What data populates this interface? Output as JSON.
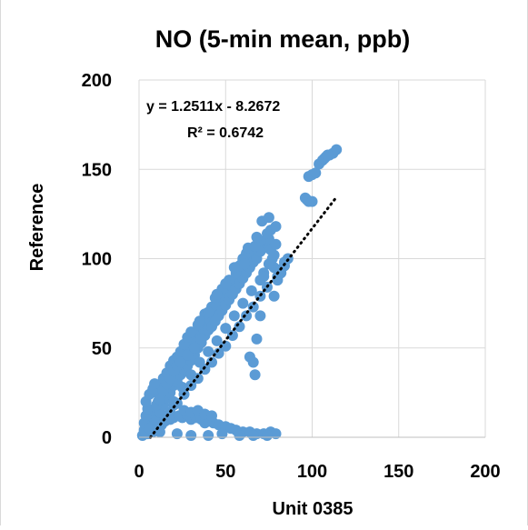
{
  "chart_data": {
    "type": "scatter",
    "title": "NO (5-min mean, ppb)",
    "xlabel": "Unit 0385",
    "ylabel": "Reference",
    "xlim": [
      0,
      200
    ],
    "ylim": [
      0,
      200
    ],
    "x_ticks": [
      "0",
      "50",
      "100",
      "150",
      "200"
    ],
    "y_ticks": [
      "0",
      "50",
      "100",
      "150",
      "200"
    ],
    "grid": true,
    "marker_color": "#5b9bd5",
    "trendline": {
      "type": "linear",
      "slope": 1.2511,
      "intercept": -8.2672,
      "x_range": [
        6.6,
        114
      ],
      "style": "dotted",
      "color": "#000000"
    },
    "equation_label": "y = 1.2511x - 8.2672",
    "r2_label": "R² = 0.6742",
    "series": [
      {
        "points": [
          [
            2,
            1
          ],
          [
            3,
            4
          ],
          [
            4,
            2
          ],
          [
            5,
            8
          ],
          [
            6,
            3
          ],
          [
            7,
            12
          ],
          [
            8,
            6
          ],
          [
            9,
            15
          ],
          [
            10,
            9
          ],
          [
            11,
            20
          ],
          [
            12,
            14
          ],
          [
            13,
            24
          ],
          [
            14,
            18
          ],
          [
            15,
            27
          ],
          [
            16,
            22
          ],
          [
            17,
            30
          ],
          [
            18,
            25
          ],
          [
            19,
            34
          ],
          [
            20,
            29
          ],
          [
            21,
            38
          ],
          [
            22,
            31
          ],
          [
            23,
            41
          ],
          [
            24,
            35
          ],
          [
            25,
            44
          ],
          [
            26,
            38
          ],
          [
            27,
            46
          ],
          [
            28,
            40
          ],
          [
            29,
            48
          ],
          [
            30,
            43
          ],
          [
            31,
            52
          ],
          [
            32,
            46
          ],
          [
            33,
            55
          ],
          [
            34,
            50
          ],
          [
            35,
            58
          ],
          [
            36,
            53
          ],
          [
            37,
            61
          ],
          [
            38,
            57
          ],
          [
            39,
            63
          ],
          [
            40,
            60
          ],
          [
            41,
            66
          ],
          [
            42,
            62
          ],
          [
            43,
            70
          ],
          [
            44,
            65
          ],
          [
            45,
            72
          ],
          [
            46,
            68
          ],
          [
            47,
            75
          ],
          [
            48,
            71
          ],
          [
            49,
            78
          ],
          [
            50,
            74
          ],
          [
            51,
            82
          ],
          [
            52,
            77
          ],
          [
            53,
            85
          ],
          [
            54,
            80
          ],
          [
            55,
            88
          ],
          [
            56,
            83
          ],
          [
            57,
            90
          ],
          [
            58,
            86
          ],
          [
            59,
            93
          ],
          [
            60,
            89
          ],
          [
            61,
            96
          ],
          [
            62,
            92
          ],
          [
            63,
            99
          ],
          [
            64,
            95
          ],
          [
            65,
            101
          ],
          [
            66,
            98
          ],
          [
            67,
            103
          ],
          [
            68,
            100
          ],
          [
            69,
            106
          ],
          [
            70,
            104
          ],
          [
            71,
            108
          ],
          [
            72,
            106
          ],
          [
            73,
            110
          ],
          [
            74,
            108
          ],
          [
            75,
            111
          ],
          [
            76,
            105
          ],
          [
            77,
            100
          ],
          [
            78,
            95
          ],
          [
            80,
            90
          ],
          [
            82,
            94
          ],
          [
            84,
            98
          ],
          [
            86,
            100
          ],
          [
            20,
            20
          ],
          [
            25,
            28
          ],
          [
            30,
            35
          ],
          [
            35,
            42
          ],
          [
            40,
            48
          ],
          [
            45,
            54
          ],
          [
            50,
            61
          ],
          [
            55,
            68
          ],
          [
            60,
            75
          ],
          [
            65,
            82
          ],
          [
            70,
            88
          ],
          [
            72,
            92
          ],
          [
            75,
            97
          ],
          [
            78,
            102
          ],
          [
            79,
            108
          ],
          [
            10,
            25
          ],
          [
            12,
            28
          ],
          [
            14,
            33
          ],
          [
            16,
            36
          ],
          [
            18,
            40
          ],
          [
            20,
            43
          ],
          [
            22,
            45
          ],
          [
            24,
            48
          ],
          [
            26,
            52
          ],
          [
            28,
            56
          ],
          [
            30,
            59
          ],
          [
            34,
            63
          ],
          [
            38,
            69
          ],
          [
            42,
            73
          ],
          [
            44,
            78
          ],
          [
            48,
            83
          ],
          [
            52,
            88
          ],
          [
            56,
            92
          ],
          [
            58,
            96
          ],
          [
            60,
            100
          ],
          [
            62,
            103
          ],
          [
            66,
            106
          ],
          [
            70,
            110
          ],
          [
            74,
            114
          ],
          [
            76,
            116
          ],
          [
            79,
            118
          ],
          [
            60,
            99
          ],
          [
            61,
            97
          ],
          [
            63,
            106
          ],
          [
            67,
            107
          ],
          [
            68,
            112
          ],
          [
            71,
            121
          ],
          [
            75,
            123
          ],
          [
            35,
            65
          ],
          [
            40,
            70
          ],
          [
            45,
            80
          ],
          [
            50,
            86
          ],
          [
            55,
            95
          ],
          [
            15,
            10
          ],
          [
            18,
            14
          ],
          [
            22,
            19
          ],
          [
            26,
            24
          ],
          [
            30,
            29
          ],
          [
            34,
            33
          ],
          [
            38,
            38
          ],
          [
            42,
            42
          ],
          [
            46,
            47
          ],
          [
            50,
            51
          ],
          [
            54,
            57
          ],
          [
            58,
            62
          ],
          [
            62,
            68
          ],
          [
            66,
            73
          ],
          [
            70,
            79
          ],
          [
            74,
            84
          ],
          [
            3,
            8
          ],
          [
            4,
            12
          ],
          [
            5,
            16
          ],
          [
            4,
            20
          ],
          [
            6,
            24
          ],
          [
            8,
            27
          ],
          [
            9,
            30
          ],
          [
            10,
            18
          ],
          [
            12,
            21
          ],
          [
            14,
            26
          ],
          [
            16,
            30
          ],
          [
            18,
            33
          ],
          [
            20,
            37
          ],
          [
            22,
            40
          ],
          [
            24,
            42
          ],
          [
            28,
            46
          ],
          [
            32,
            50
          ],
          [
            36,
            55
          ],
          [
            5,
            2
          ],
          [
            8,
            3
          ],
          [
            10,
            5
          ],
          [
            13,
            7
          ],
          [
            15,
            9
          ],
          [
            18,
            10
          ],
          [
            20,
            11
          ],
          [
            23,
            12
          ],
          [
            25,
            11
          ],
          [
            28,
            12
          ],
          [
            30,
            10
          ],
          [
            33,
            11
          ],
          [
            36,
            10
          ],
          [
            38,
            8
          ],
          [
            40,
            9
          ],
          [
            43,
            8
          ],
          [
            46,
            7
          ],
          [
            50,
            6
          ],
          [
            53,
            5
          ],
          [
            56,
            4
          ],
          [
            60,
            3
          ],
          [
            64,
            3
          ],
          [
            68,
            2
          ],
          [
            72,
            2
          ],
          [
            76,
            3
          ],
          [
            79,
            2
          ],
          [
            6,
            5
          ],
          [
            12,
            3
          ],
          [
            22,
            2
          ],
          [
            30,
            1
          ],
          [
            40,
            1
          ],
          [
            48,
            2
          ],
          [
            58,
            1
          ],
          [
            66,
            1
          ],
          [
            74,
            1
          ],
          [
            20,
            18
          ],
          [
            26,
            15
          ],
          [
            30,
            14
          ],
          [
            34,
            15
          ],
          [
            38,
            13
          ],
          [
            42,
            12
          ],
          [
            64,
            45
          ],
          [
            67,
            35
          ],
          [
            66,
            42
          ],
          [
            68,
            55
          ],
          [
            70,
            68
          ],
          [
            78,
            79
          ],
          [
            72,
            90
          ],
          [
            80,
            88
          ],
          [
            82,
            92
          ],
          [
            84,
            96
          ],
          [
            96,
            134
          ],
          [
            97,
            133
          ],
          [
            98,
            132
          ],
          [
            100,
            132
          ],
          [
            98,
            146
          ],
          [
            100,
            147
          ],
          [
            102,
            148
          ],
          [
            104,
            153
          ],
          [
            106,
            155
          ],
          [
            107,
            156
          ],
          [
            108,
            157
          ],
          [
            110,
            158
          ],
          [
            112,
            159
          ],
          [
            114,
            161
          ],
          [
            109,
            158
          ]
        ]
      }
    ]
  }
}
